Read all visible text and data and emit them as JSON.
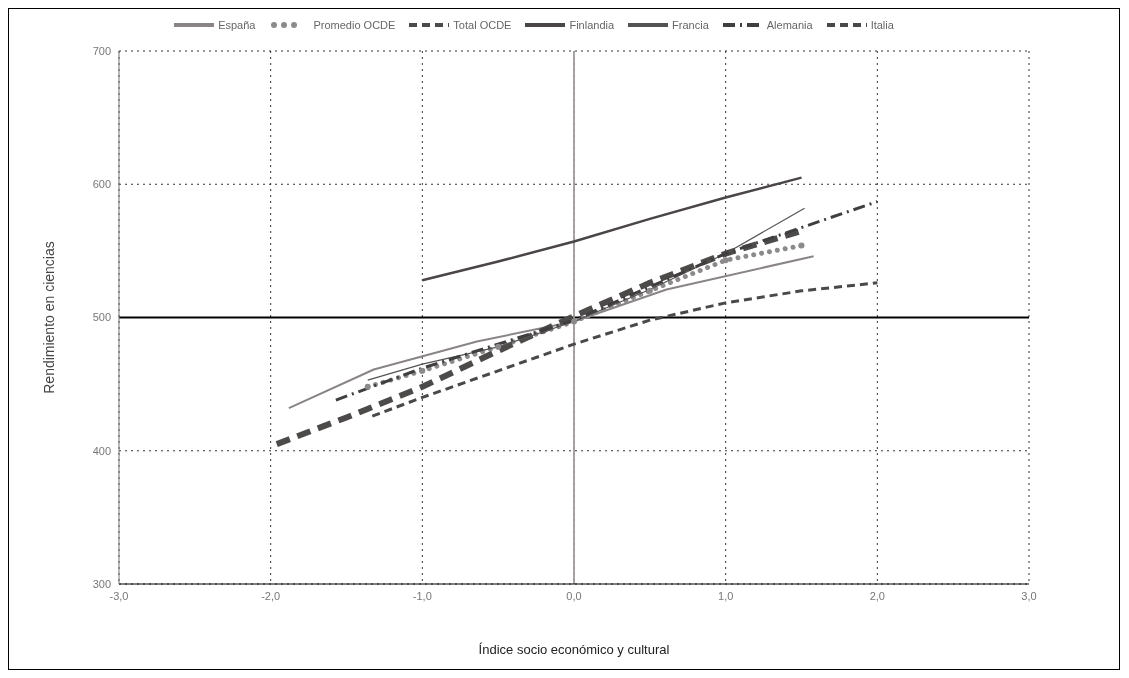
{
  "chart_data": {
    "type": "line",
    "xlabel": "Índice socio económico y cultural",
    "ylabel": "Rendimiento en ciencias",
    "xlim": [
      -3,
      3
    ],
    "xticks": [
      {
        "value": -3,
        "label": "-3,0"
      },
      {
        "value": -2,
        "label": "-2,0"
      },
      {
        "value": -1,
        "label": "-1,0"
      },
      {
        "value": 0,
        "label": "0,0"
      },
      {
        "value": 1,
        "label": "1,0"
      },
      {
        "value": 2,
        "label": "2,0"
      },
      {
        "value": 3,
        "label": "3,0"
      }
    ],
    "ylim": [
      300,
      700
    ],
    "yticks": [
      300,
      400,
      500,
      600,
      700
    ],
    "grid": true,
    "legend": "top",
    "marker": "none",
    "ref_lines": [
      {
        "axis": "y",
        "value": 500,
        "color": "#000000",
        "line_style": "solid"
      },
      {
        "axis": "x",
        "value": 0,
        "color": "#a09a9a",
        "line_style": "solid"
      }
    ],
    "series": [
      {
        "name": "España",
        "color": "#8a8585",
        "line_style": "solid",
        "x": [
          -1.88,
          -1.32,
          -0.64,
          0,
          0.61,
          1.58
        ],
        "values": [
          432,
          461,
          482,
          497,
          521,
          546
        ]
      },
      {
        "name": "Promedio OCDE",
        "color": "#8c8a8a",
        "line_style": "dotted",
        "marker": "circle",
        "x": [
          -1.36,
          -1,
          -0.5,
          0,
          0.5,
          1,
          1.5
        ],
        "values": [
          448,
          460,
          478,
          497,
          520,
          543,
          554
        ]
      },
      {
        "name": "Total OCDE",
        "color": "#4d4a4a",
        "line_style": "dashed",
        "x": [
          -1.96,
          -1.5,
          -1,
          -0.5,
          0,
          0.5,
          1,
          1.5
        ],
        "values": [
          405,
          425,
          448,
          475,
          501,
          526,
          548,
          565
        ]
      },
      {
        "name": "Finlandia",
        "color": "#4a4646",
        "line_style": "solid",
        "x": [
          -1,
          -0.5,
          0,
          0.5,
          1,
          1.5
        ],
        "values": [
          528,
          542,
          557,
          574,
          590,
          605
        ]
      },
      {
        "name": "Francia",
        "color": "#555252",
        "line_style": "solid",
        "x": [
          -1.36,
          -1,
          -0.5,
          0,
          0.5,
          1,
          1.52
        ],
        "values": [
          453,
          465,
          478,
          497,
          521,
          548,
          582
        ]
      },
      {
        "name": "Alemania",
        "color": "#403e3e",
        "line_style": "dashdot",
        "x": [
          -1.57,
          -1,
          0,
          1,
          2
        ],
        "values": [
          438,
          462,
          498,
          548,
          587
        ]
      },
      {
        "name": "Italia",
        "color": "#4a4848",
        "line_style": "dashed",
        "x": [
          -1.33,
          -1,
          -0.5,
          0,
          0.5,
          1,
          1.5,
          2
        ],
        "values": [
          426,
          440,
          460,
          480,
          498,
          511,
          520,
          526
        ]
      }
    ]
  }
}
